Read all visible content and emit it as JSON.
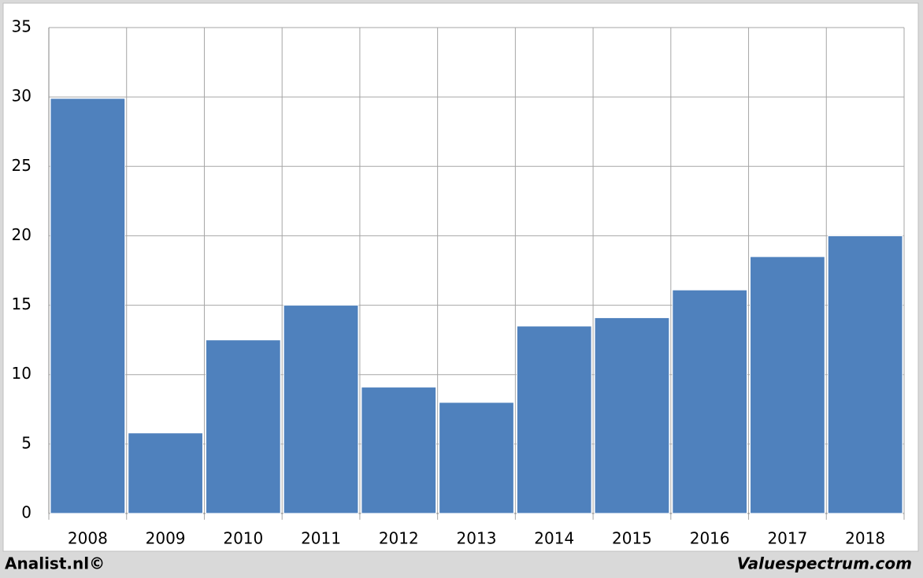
{
  "chart_data": {
    "type": "bar",
    "categories": [
      "2008",
      "2009",
      "2010",
      "2011",
      "2012",
      "2013",
      "2014",
      "2015",
      "2016",
      "2017",
      "2018"
    ],
    "values": [
      29.9,
      5.8,
      12.5,
      15,
      9.1,
      8,
      13.5,
      14.1,
      16.1,
      18.5,
      20
    ],
    "color": "#4f81bd",
    "ylim": [
      0,
      35
    ],
    "yticks": [
      0,
      5,
      10,
      15,
      20,
      25,
      30,
      35
    ],
    "grid": true,
    "footer_left": "Analist.nl©",
    "footer_right": "Valuespectrum.com"
  }
}
